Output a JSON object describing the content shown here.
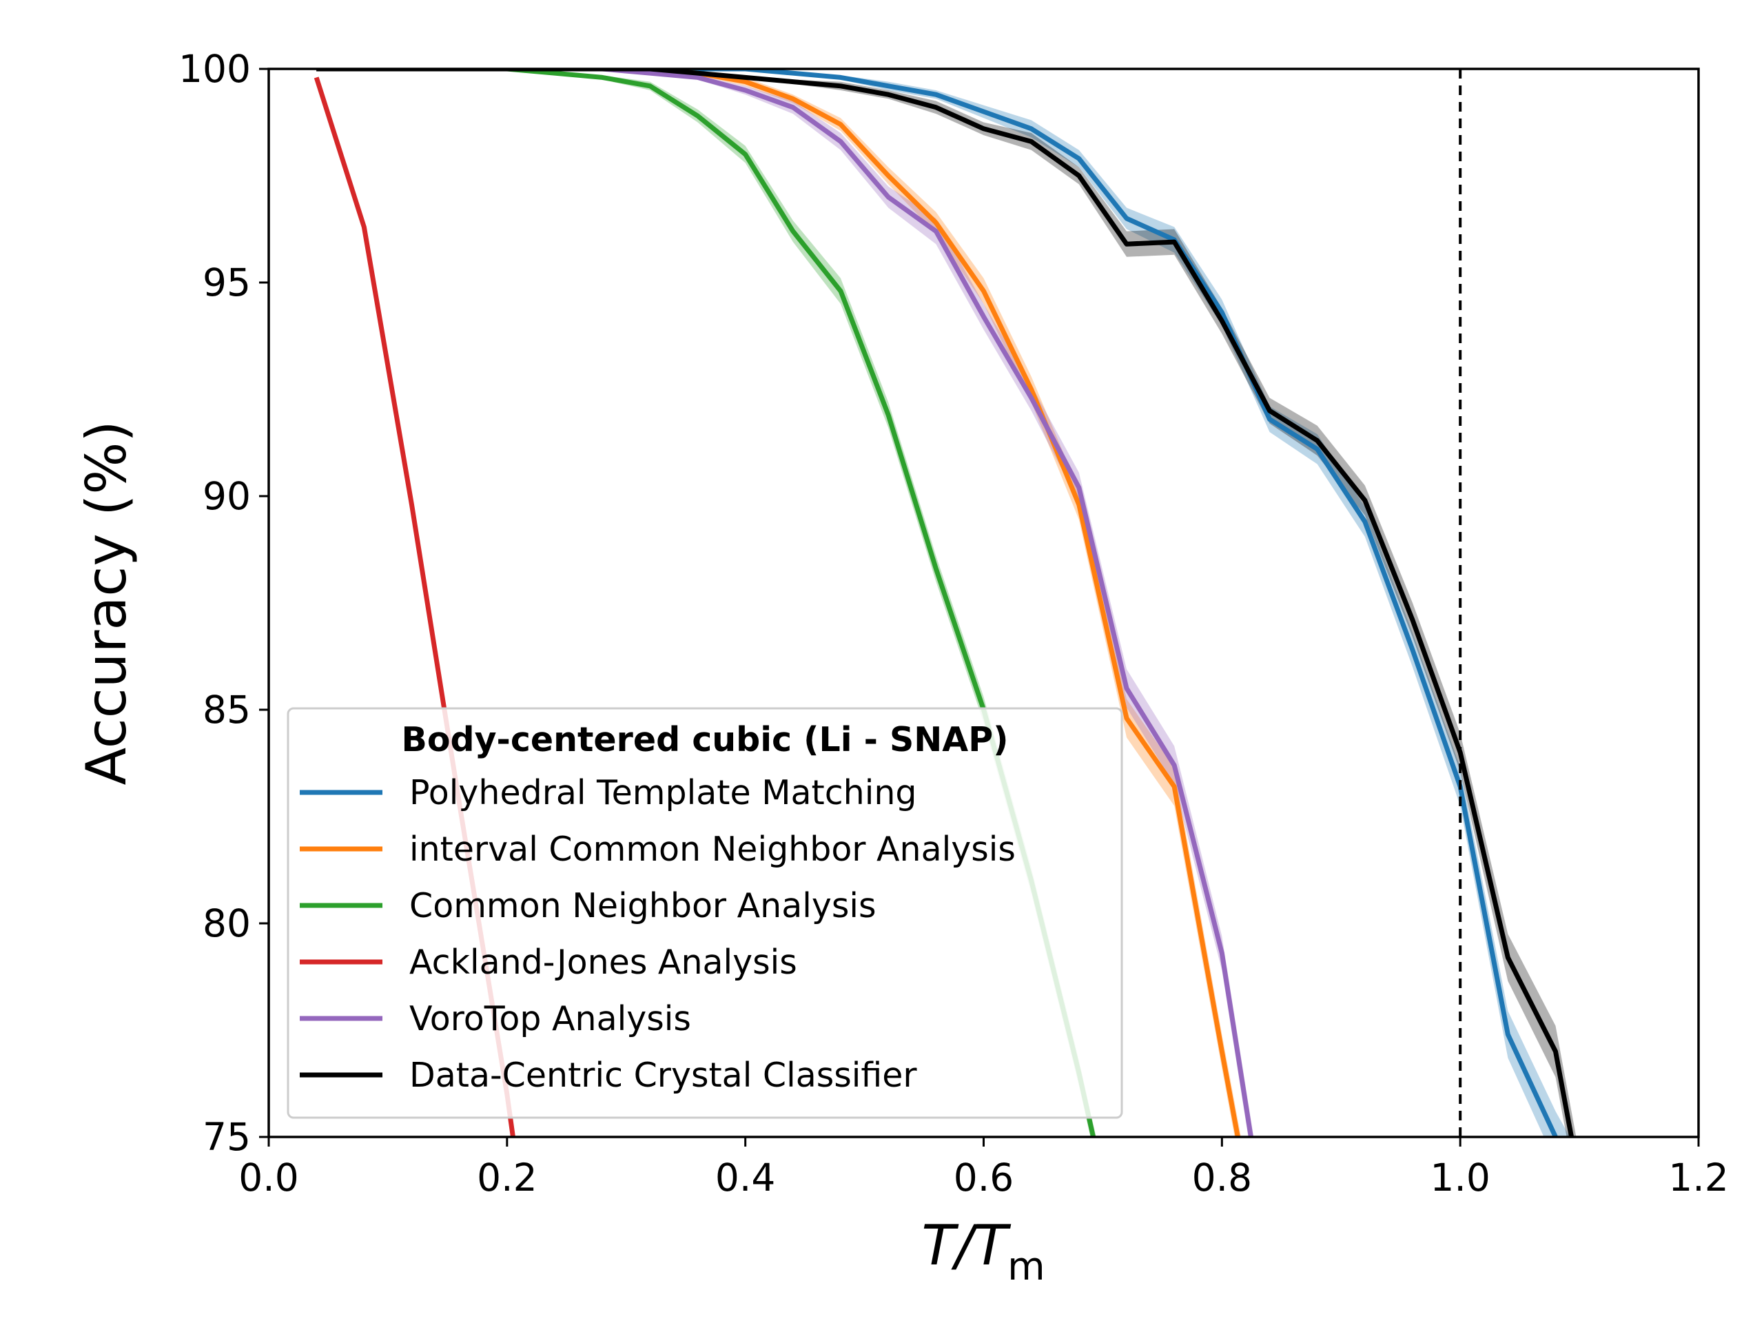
{
  "chart_data": {
    "type": "line",
    "xlabel_main": "T/T",
    "xlabel_sub": "m",
    "ylabel": "Accuracy (%)",
    "xlim": [
      0.0,
      1.2
    ],
    "ylim": [
      75,
      100
    ],
    "xticks": [
      "0.0",
      "0.2",
      "0.4",
      "0.6",
      "0.8",
      "1.0",
      "1.2"
    ],
    "yticks": [
      "75",
      "80",
      "85",
      "90",
      "95",
      "100"
    ],
    "vline_x": 1.0,
    "grid": false,
    "legend": {
      "title": "Body-centered cubic (Li - SNAP)",
      "placement": "lower-left"
    },
    "series": [
      {
        "name": "Polyhedral Template Matching",
        "color": "#1f77b4",
        "x": [
          0.04,
          0.08,
          0.12,
          0.16,
          0.2,
          0.24,
          0.28,
          0.32,
          0.36,
          0.4,
          0.44,
          0.48,
          0.52,
          0.56,
          0.6,
          0.64,
          0.68,
          0.72,
          0.76,
          0.8,
          0.84,
          0.88,
          0.92,
          0.96,
          1.0,
          1.04,
          1.08,
          1.1
        ],
        "y": [
          100,
          100,
          100,
          100,
          100,
          100,
          100,
          100,
          100,
          100,
          99.9,
          99.8,
          99.6,
          99.4,
          99.0,
          98.6,
          97.9,
          96.5,
          96.0,
          94.3,
          91.8,
          91.1,
          89.4,
          86.4,
          83.2,
          77.4,
          75.0,
          74.0
        ],
        "band": [
          0.0,
          0.0,
          0.0,
          0.0,
          0.0,
          0.0,
          0.0,
          0.0,
          0.0,
          0.0,
          0.05,
          0.05,
          0.1,
          0.1,
          0.15,
          0.2,
          0.2,
          0.25,
          0.3,
          0.3,
          0.3,
          0.35,
          0.35,
          0.4,
          0.45,
          0.55,
          0.6,
          0.6
        ]
      },
      {
        "name": "interval Common Neighbor Analysis",
        "color": "#ff7f0e",
        "x": [
          0.04,
          0.08,
          0.12,
          0.16,
          0.2,
          0.24,
          0.28,
          0.32,
          0.36,
          0.4,
          0.44,
          0.48,
          0.52,
          0.56,
          0.6,
          0.64,
          0.68,
          0.72,
          0.76,
          0.8,
          0.82
        ],
        "y": [
          100,
          100,
          100,
          100,
          100,
          100,
          100,
          100,
          99.9,
          99.7,
          99.3,
          98.7,
          97.5,
          96.4,
          94.8,
          92.5,
          89.8,
          84.8,
          83.2,
          77.0,
          74.0
        ],
        "band": [
          0.0,
          0.0,
          0.0,
          0.0,
          0.0,
          0.0,
          0.0,
          0.0,
          0.05,
          0.1,
          0.1,
          0.15,
          0.2,
          0.25,
          0.3,
          0.3,
          0.35,
          0.45,
          0.45,
          0.4,
          0.4
        ]
      },
      {
        "name": "Common Neighbor Analysis",
        "color": "#2ca02c",
        "x": [
          0.04,
          0.08,
          0.12,
          0.16,
          0.2,
          0.24,
          0.28,
          0.32,
          0.36,
          0.4,
          0.44,
          0.48,
          0.52,
          0.56,
          0.6,
          0.64,
          0.68,
          0.7
        ],
        "y": [
          100,
          100,
          100,
          100,
          100,
          99.9,
          99.8,
          99.6,
          98.9,
          98.0,
          96.2,
          94.8,
          91.9,
          88.3,
          85.0,
          81.0,
          76.5,
          74.0
        ],
        "band": [
          0.0,
          0.0,
          0.0,
          0.0,
          0.0,
          0.05,
          0.05,
          0.1,
          0.15,
          0.2,
          0.25,
          0.3,
          0.3,
          0.3,
          0.3,
          0.3,
          0.3,
          0.3
        ]
      },
      {
        "name": "Ackland-Jones Analysis",
        "color": "#d62728",
        "x": [
          0.04,
          0.08,
          0.12,
          0.16,
          0.2,
          0.21
        ],
        "y": [
          99.8,
          96.3,
          89.8,
          82.8,
          76.0,
          74.0
        ],
        "band": [
          0.0,
          0.1,
          0.15,
          0.2,
          0.2,
          0.2
        ]
      },
      {
        "name": "VoroTop Analysis",
        "color": "#9467bd",
        "x": [
          0.04,
          0.08,
          0.12,
          0.16,
          0.2,
          0.24,
          0.28,
          0.32,
          0.36,
          0.4,
          0.44,
          0.48,
          0.52,
          0.56,
          0.6,
          0.64,
          0.68,
          0.72,
          0.76,
          0.8,
          0.83
        ],
        "y": [
          100,
          100,
          100,
          100,
          100,
          100,
          100,
          99.9,
          99.8,
          99.5,
          99.1,
          98.3,
          97.0,
          96.2,
          94.2,
          92.3,
          90.2,
          85.5,
          83.7,
          79.3,
          74.0
        ],
        "band": [
          0.0,
          0.0,
          0.0,
          0.0,
          0.0,
          0.0,
          0.0,
          0.05,
          0.05,
          0.1,
          0.15,
          0.2,
          0.25,
          0.3,
          0.3,
          0.3,
          0.35,
          0.45,
          0.45,
          0.4,
          0.4
        ]
      },
      {
        "name": "Data-Centric Crystal Classifier",
        "color": "#000000",
        "x": [
          0.04,
          0.08,
          0.12,
          0.16,
          0.2,
          0.24,
          0.28,
          0.32,
          0.36,
          0.4,
          0.44,
          0.48,
          0.52,
          0.56,
          0.6,
          0.64,
          0.68,
          0.72,
          0.76,
          0.8,
          0.84,
          0.88,
          0.92,
          0.96,
          1.0,
          1.04,
          1.08,
          1.1
        ],
        "y": [
          100,
          100,
          100,
          100,
          100,
          100,
          100,
          100,
          99.9,
          99.8,
          99.7,
          99.6,
          99.4,
          99.1,
          98.6,
          98.3,
          97.5,
          95.9,
          95.95,
          94.1,
          92.0,
          91.3,
          89.9,
          87.1,
          84.0,
          79.2,
          77.0,
          74.0
        ],
        "band": [
          0.0,
          0.0,
          0.0,
          0.0,
          0.0,
          0.0,
          0.0,
          0.0,
          0.05,
          0.05,
          0.05,
          0.1,
          0.1,
          0.15,
          0.15,
          0.2,
          0.2,
          0.3,
          0.3,
          0.3,
          0.3,
          0.35,
          0.35,
          0.4,
          0.45,
          0.55,
          0.6,
          0.6
        ]
      }
    ]
  }
}
